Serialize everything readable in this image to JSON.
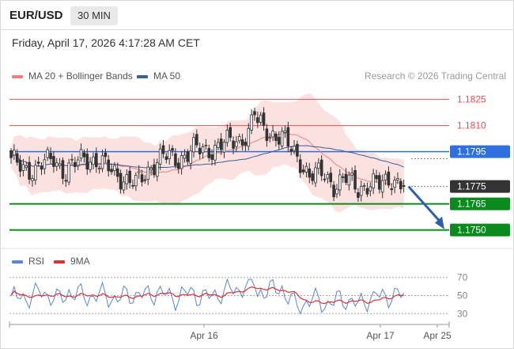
{
  "header": {
    "symbol": "EUR/USD",
    "timeframe": "30 MIN"
  },
  "timestamp": "Friday, April 17, 2026 4:17:28 AM CET",
  "legend": {
    "ma20": "MA 20 + Bollinger Bands",
    "ma50": "MA 50",
    "rsi": "RSI",
    "ma9": "9MA"
  },
  "credit": "Research © 2026 Trading Central",
  "colors": {
    "resistance": "#f04a4a",
    "pivot": "#2f6fe0",
    "support": "#0b8a1e",
    "current": "#333333",
    "candle_up": "#ffffff",
    "candle_down": "#333333",
    "band_fill": "#fcdcdc",
    "ma20": "#f08080",
    "ma50": "#3b5e9c",
    "rsi": "#5b86d6",
    "rsi_ma": "#e03030",
    "arrow": "#2f5fa8"
  },
  "chart_data": [
    {
      "type": "candlestick",
      "ylim": [
        1.1743,
        1.1833
      ],
      "levels": [
        {
          "value": 1.1825,
          "label": "1.1825",
          "kind": "resistance"
        },
        {
          "value": 1.181,
          "label": "1.1810",
          "kind": "resistance"
        },
        {
          "value": 1.1795,
          "label": "1.1795",
          "kind": "pivot"
        },
        {
          "value": 1.1775,
          "label": "1.1775",
          "kind": "current"
        },
        {
          "value": 1.1765,
          "label": "1.1765",
          "kind": "support"
        },
        {
          "value": 1.175,
          "label": "1.1750",
          "kind": "support"
        }
      ],
      "x_labels": [
        "Apr 16",
        "Apr 17",
        "Apr 25"
      ],
      "forecast": {
        "from": 1.1775,
        "to": 1.175
      }
    },
    {
      "type": "line",
      "name": "RSI",
      "ylim": [
        25,
        75
      ],
      "yticks": [
        "70",
        "50",
        "30"
      ],
      "series": [
        {
          "name": "RSI"
        },
        {
          "name": "9MA"
        }
      ]
    }
  ]
}
